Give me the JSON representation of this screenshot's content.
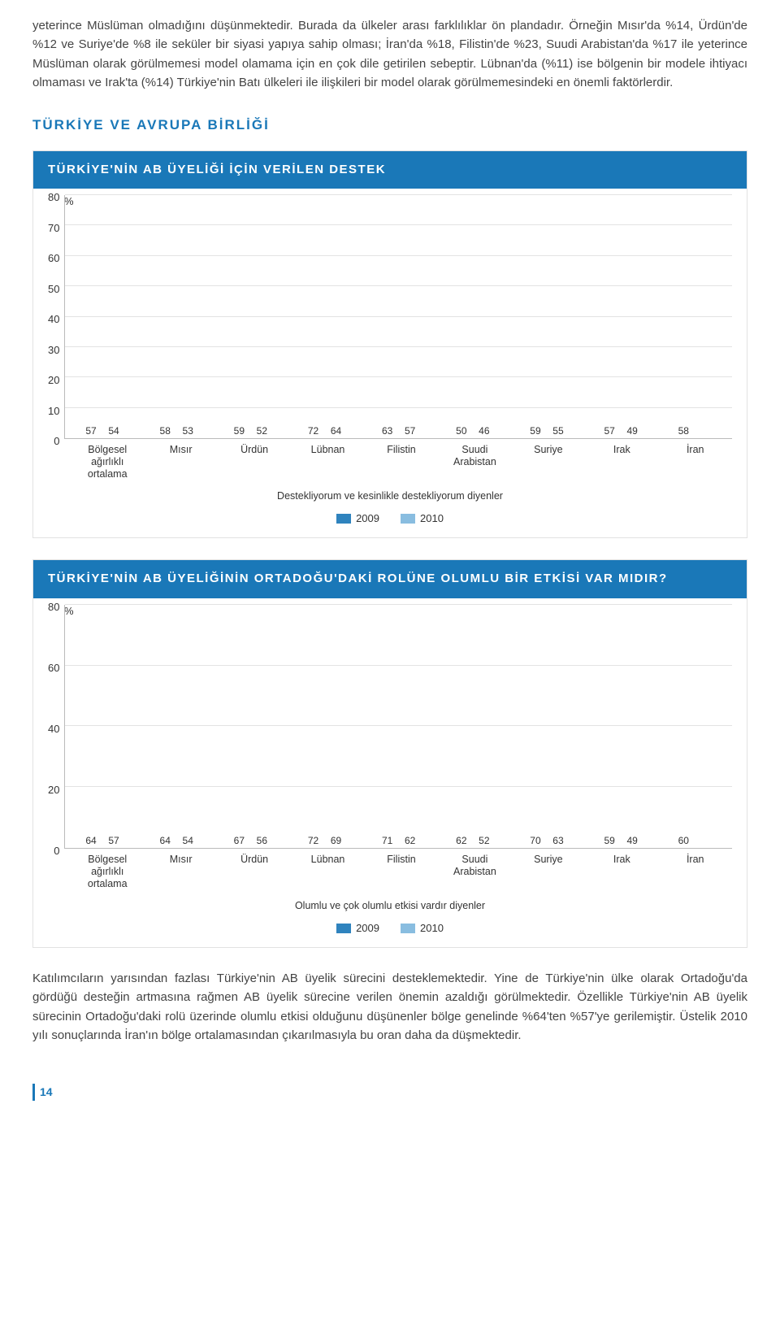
{
  "para_top": "yeterince Müslüman olmadığını düşünmektedir. Burada da ülkeler arası farklılıklar ön plandadır. Örneğin Mısır'da %14, Ürdün'de %12 ve Suriye'de %8 ile seküler bir siyasi yapıya sahip olması; İran'da %18, Filistin'de %23, Suudi Arabistan'da %17 ile yeterince Müslüman olarak görülmemesi model olamama için en çok dile getirilen sebeptir. Lübnan'da (%11) ise bölgenin bir modele ihtiyacı olmaması ve Irak'ta (%14) Türkiye'nin Batı ülkeleri ile ilişkileri bir model olarak görülmemesindeki en önemli faktörlerdir.",
  "section_heading": "TÜRKİYE VE AVRUPA BİRLİĞİ",
  "chart1": {
    "title": "TÜRKİYE'NİN AB ÜYELİĞİ İÇİN VERİLEN DESTEK",
    "y_pct": "%",
    "ymax": 80,
    "yticks": [
      80,
      70,
      60,
      50,
      40,
      30,
      20,
      10,
      0
    ],
    "categories": [
      "Bölgesel ağırlıklı ortalama",
      "Mısır",
      "Ürdün",
      "Lübnan",
      "Filistin",
      "Suudi Arabistan",
      "Suriye",
      "Irak",
      "İran"
    ],
    "series": [
      {
        "label": "2009",
        "color": "#2f83be",
        "values": [
          57,
          58,
          59,
          72,
          63,
          50,
          59,
          57,
          58
        ]
      },
      {
        "label": "2010",
        "color": "#89bde0",
        "values": [
          54,
          53,
          52,
          64,
          57,
          46,
          55,
          49,
          null
        ]
      }
    ],
    "subcaption": "Destekliyorum ve kesinlikle destekliyorum diyenler"
  },
  "chart2": {
    "title": "TÜRKİYE'NİN AB ÜYELİĞİNİN ORTADOĞU'DAKİ ROLÜNE OLUMLU BİR ETKİSİ VAR MIDIR?",
    "y_pct": "%",
    "ymax": 80,
    "yticks": [
      80,
      60,
      40,
      20,
      0
    ],
    "categories": [
      "Bölgesel ağırlıklı ortalama",
      "Mısır",
      "Ürdün",
      "Lübnan",
      "Filistin",
      "Suudi Arabistan",
      "Suriye",
      "Irak",
      "İran"
    ],
    "series": [
      {
        "label": "2009",
        "color": "#2f83be",
        "values": [
          64,
          64,
          67,
          72,
          71,
          62,
          70,
          59,
          60
        ]
      },
      {
        "label": "2010",
        "color": "#89bde0",
        "values": [
          57,
          54,
          56,
          69,
          62,
          52,
          63,
          49,
          null
        ]
      }
    ],
    "subcaption": "Olumlu ve çok olumlu etkisi vardır diyenler"
  },
  "para_bottom": "Katılımcıların yarısından fazlası Türkiye'nin AB üyelik sürecini desteklemektedir. Yine de Türkiye'nin ülke olarak Ortadoğu'da gördüğü desteğin artmasına rağmen AB üyelik sürecine verilen önemin azaldığı görülmektedir. Özellikle Türkiye'nin AB üyelik sürecinin Ortadoğu'daki rolü üzerinde olumlu etkisi olduğunu düşünenler bölge genelinde %64'ten %57'ye gerilemiştir. Üstelik 2010 yılı sonuçlarında İran'ın bölge ortalamasından çıkarılmasıyla bu oran daha da düşmektedir.",
  "page_num": "14"
}
